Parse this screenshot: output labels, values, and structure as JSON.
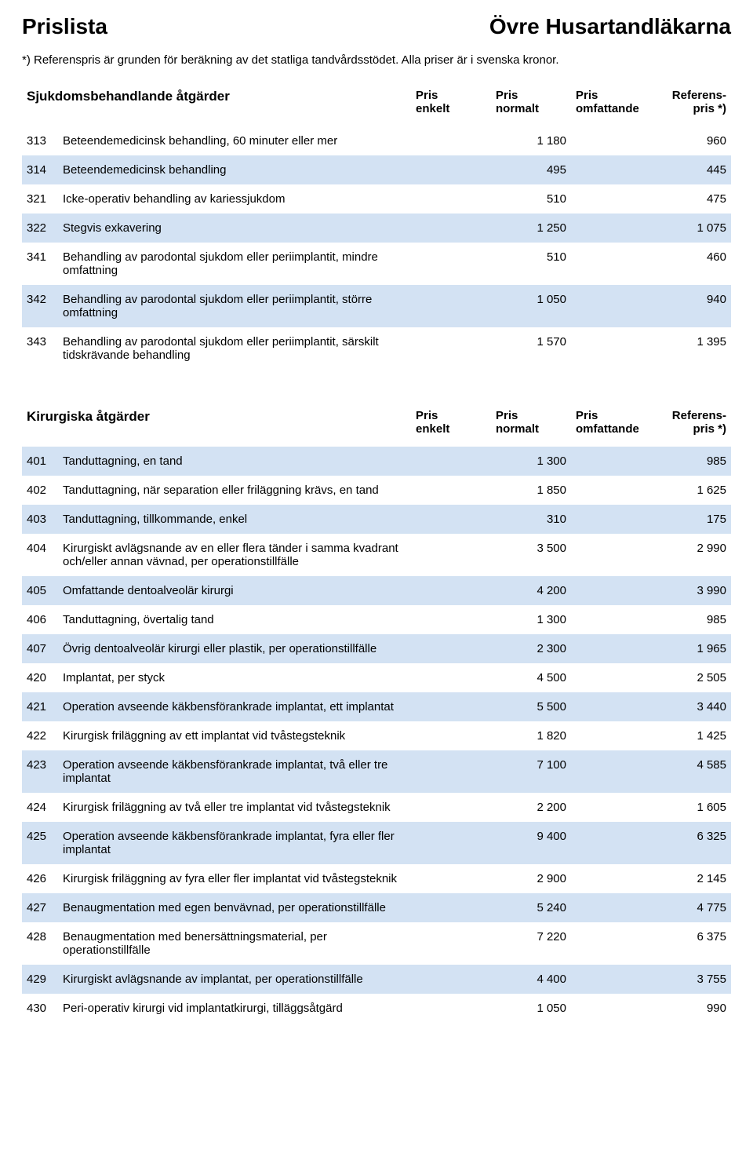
{
  "colors": {
    "band_bg": "#d3e2f3",
    "text": "#000000",
    "background": "#ffffff"
  },
  "typography": {
    "title_fontsize_pt": 21,
    "body_fontsize_pt": 11,
    "section_header_fontsize_pt": 13,
    "font_family": "Arial"
  },
  "header": {
    "title_left": "Prislista",
    "title_right": "Övre Husartandläkarna",
    "footnote": "*) Referenspris är grunden för beräkning av det statliga tandvårdsstödet. Alla priser är i svenska kronor."
  },
  "column_headers": {
    "pris_enkelt_l1": "Pris",
    "pris_enkelt_l2": "enkelt",
    "pris_normalt_l1": "Pris",
    "pris_normalt_l2": "normalt",
    "pris_omf_l1": "Pris",
    "pris_omf_l2": "omfattande",
    "ref_l1": "Referens-",
    "ref_l2": "pris *)"
  },
  "sections": [
    {
      "title": "Sjukdomsbehandlande åtgärder",
      "rows": [
        {
          "code": "313",
          "desc": "Beteendemedicinsk behandling, 60 minuter eller mer",
          "p1": "",
          "p2": "1 180",
          "p3": "",
          "ref": "960",
          "band": false
        },
        {
          "code": "314",
          "desc": "Beteendemedicinsk behandling",
          "p1": "",
          "p2": "495",
          "p3": "",
          "ref": "445",
          "band": true
        },
        {
          "code": "321",
          "desc": "Icke-operativ behandling av kariessjukdom",
          "p1": "",
          "p2": "510",
          "p3": "",
          "ref": "475",
          "band": false
        },
        {
          "code": "322",
          "desc": "Stegvis exkavering",
          "p1": "",
          "p2": "1 250",
          "p3": "",
          "ref": "1 075",
          "band": true
        },
        {
          "code": "341",
          "desc": "Behandling av parodontal sjukdom eller periimplantit, mindre omfattning",
          "p1": "",
          "p2": "510",
          "p3": "",
          "ref": "460",
          "band": false
        },
        {
          "code": "342",
          "desc": "Behandling av parodontal sjukdom eller periimplantit, större omfattning",
          "p1": "",
          "p2": "1 050",
          "p3": "",
          "ref": "940",
          "band": true
        },
        {
          "code": "343",
          "desc": "Behandling av parodontal sjukdom eller periimplantit, särskilt tidskrävande behandling",
          "p1": "",
          "p2": "1 570",
          "p3": "",
          "ref": "1 395",
          "band": false
        }
      ]
    },
    {
      "title": "Kirurgiska åtgärder",
      "rows": [
        {
          "code": "401",
          "desc": "Tanduttagning, en tand",
          "p1": "",
          "p2": "1 300",
          "p3": "",
          "ref": "985",
          "band": true
        },
        {
          "code": "402",
          "desc": "Tanduttagning, när separation eller friläggning krävs, en tand",
          "p1": "",
          "p2": "1 850",
          "p3": "",
          "ref": "1 625",
          "band": false
        },
        {
          "code": "403",
          "desc": "Tanduttagning, tillkommande, enkel",
          "p1": "",
          "p2": "310",
          "p3": "",
          "ref": "175",
          "band": true
        },
        {
          "code": "404",
          "desc": "Kirurgiskt avlägsnande av en eller flera tänder i samma kvadrant och/eller annan vävnad, per operationstillfälle",
          "p1": "",
          "p2": "3 500",
          "p3": "",
          "ref": "2 990",
          "band": false
        },
        {
          "code": "405",
          "desc": "Omfattande dentoalveolär kirurgi",
          "p1": "",
          "p2": "4 200",
          "p3": "",
          "ref": "3 990",
          "band": true
        },
        {
          "code": "406",
          "desc": "Tanduttagning, övertalig tand",
          "p1": "",
          "p2": "1 300",
          "p3": "",
          "ref": "985",
          "band": false
        },
        {
          "code": "407",
          "desc": "Övrig dentoalveolär kirurgi eller plastik, per operationstillfälle",
          "p1": "",
          "p2": "2 300",
          "p3": "",
          "ref": "1 965",
          "band": true
        },
        {
          "code": "420",
          "desc": "Implantat, per styck",
          "p1": "",
          "p2": "4 500",
          "p3": "",
          "ref": "2 505",
          "band": false
        },
        {
          "code": "421",
          "desc": "Operation avseende käkbensförankrade implantat, ett implantat",
          "p1": "",
          "p2": "5 500",
          "p3": "",
          "ref": "3 440",
          "band": true
        },
        {
          "code": "422",
          "desc": "Kirurgisk friläggning av ett implantat vid tvåstegsteknik",
          "p1": "",
          "p2": "1 820",
          "p3": "",
          "ref": "1 425",
          "band": false
        },
        {
          "code": "423",
          "desc": "Operation avseende käkbensförankrade implantat, två eller tre implantat",
          "p1": "",
          "p2": "7 100",
          "p3": "",
          "ref": "4 585",
          "band": true
        },
        {
          "code": "424",
          "desc": "Kirurgisk friläggning av två eller tre implantat vid tvåstegsteknik",
          "p1": "",
          "p2": "2 200",
          "p3": "",
          "ref": "1 605",
          "band": false
        },
        {
          "code": "425",
          "desc": "Operation avseende käkbensförankrade implantat, fyra eller fler implantat",
          "p1": "",
          "p2": "9 400",
          "p3": "",
          "ref": "6 325",
          "band": true
        },
        {
          "code": "426",
          "desc": "Kirurgisk friläggning av fyra eller fler implantat vid tvåstegsteknik",
          "p1": "",
          "p2": "2 900",
          "p3": "",
          "ref": "2 145",
          "band": false
        },
        {
          "code": "427",
          "desc": "Benaugmentation med egen benvävnad, per operationstillfälle",
          "p1": "",
          "p2": "5 240",
          "p3": "",
          "ref": "4 775",
          "band": true
        },
        {
          "code": "428",
          "desc": "Benaugmentation med benersättningsmaterial, per operationstillfälle",
          "p1": "",
          "p2": "7 220",
          "p3": "",
          "ref": "6 375",
          "band": false
        },
        {
          "code": "429",
          "desc": "Kirurgiskt avlägsnande av implantat, per operationstillfälle",
          "p1": "",
          "p2": "4 400",
          "p3": "",
          "ref": "3 755",
          "band": true
        },
        {
          "code": "430",
          "desc": "Peri-operativ kirurgi vid implantatkirurgi, tilläggsåtgärd",
          "p1": "",
          "p2": "1 050",
          "p3": "",
          "ref": "990",
          "band": false
        }
      ]
    }
  ]
}
